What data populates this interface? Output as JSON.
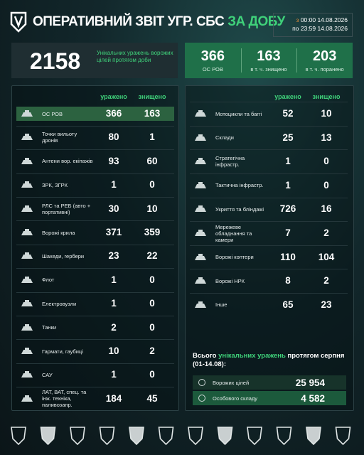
{
  "header": {
    "title": "ОПЕРАТИВНИЙ ЗВІТ УГР. СБС",
    "title_accent": "ЗА ДОБУ",
    "period": {
      "from_label": "з",
      "from": "00:00 14.08.2026",
      "to_label": "по",
      "to": "23:59 14.08.2026"
    }
  },
  "summary": {
    "total": 2158,
    "total_label": "Унікальних уражень ворожих цілей протягом доби",
    "personnel": [
      {
        "value": 366,
        "label": "ОС РОВ"
      },
      {
        "value": 163,
        "label": "в т. ч. знищено"
      },
      {
        "value": 203,
        "label": "в т. ч. поранено"
      }
    ]
  },
  "left_table": {
    "columns": [
      "уражено",
      "знищено"
    ],
    "rows": [
      [
        "ОС РОВ",
        366,
        163
      ],
      [
        "Точки вильоту дронів",
        80,
        1
      ],
      [
        "Антени вор. екіпажів",
        93,
        60
      ],
      [
        "ЗРК, ЗГРК",
        1,
        0
      ],
      [
        "РЛС та РЕБ (авто + портативні)",
        30,
        10
      ],
      [
        "Ворожі крила",
        371,
        359
      ],
      [
        "Шахеди, гербери",
        23,
        22
      ],
      [
        "Флот",
        1,
        0
      ],
      [
        "Електровузли",
        1,
        0
      ],
      [
        "Танки",
        2,
        0
      ],
      [
        "Гармати, гаубиці",
        10,
        2
      ],
      [
        "САУ",
        1,
        0
      ],
      [
        "ЛАТ, ВАТ, спец. та інж. техніка, паливозапр.",
        184,
        45
      ]
    ]
  },
  "right_table": {
    "columns": [
      "уражено",
      "знищено"
    ],
    "rows": [
      [
        "Мотоцикли та баггі",
        52,
        10
      ],
      [
        "Склади",
        25,
        13
      ],
      [
        "Стратегічна інфрастр.",
        1,
        0
      ],
      [
        "Тактична інфрастр.",
        1,
        0
      ],
      [
        "Укриття та бліндажі",
        726,
        16
      ],
      [
        "Мережеве обладнання та камери",
        7,
        2
      ],
      [
        "Ворожі коптери",
        110,
        104
      ],
      [
        "Ворожі НРК",
        8,
        2
      ],
      [
        "Інше",
        65,
        23
      ]
    ]
  },
  "monthly": {
    "title_start": "Всього",
    "title_accent": "унікальних уражень",
    "title_end": "протягом серпня (01-14.08):",
    "rows": [
      [
        "Ворожих цілей",
        "25 954"
      ],
      [
        "Особового складу",
        "4 582"
      ]
    ]
  }
}
